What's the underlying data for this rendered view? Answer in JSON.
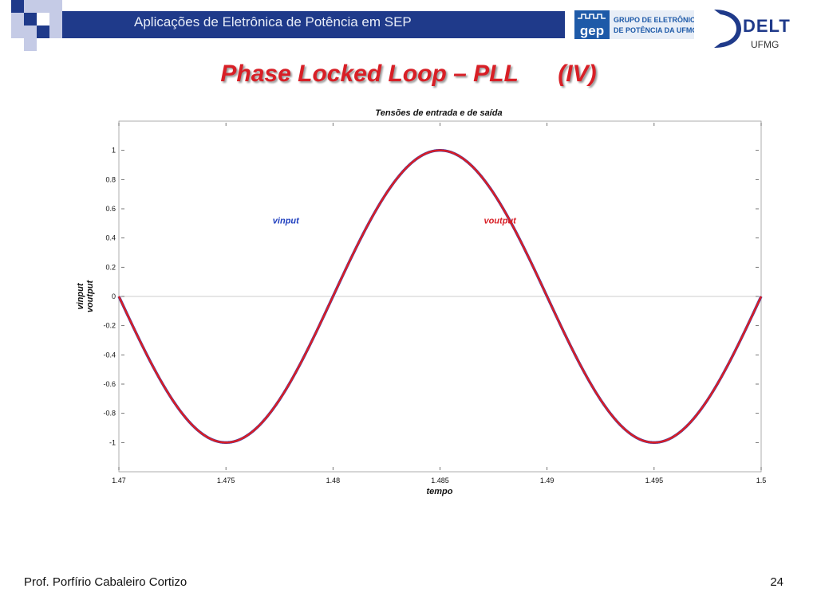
{
  "header": {
    "title": "Aplicações de Eletrônica de Potência em SEP",
    "gep_logo": {
      "mark": "gep",
      "line1": "GRUPO DE ELETRÔNICA",
      "line2": "DE POTÊNCIA DA UFMG"
    },
    "delt_logo": {
      "mark": "DELT",
      "sub": "UFMG"
    }
  },
  "slide": {
    "title": "Phase Locked Loop – PLL      (IV)"
  },
  "footer": {
    "author": "Prof. Porfírio Cabaleiro Cortizo",
    "page_number": "24"
  },
  "colors": {
    "header_band": "#1f3a8a",
    "title_red": "#d81f26",
    "vinput": "#1f3fbf",
    "voutput": "#d81f26"
  },
  "chart_data": {
    "type": "line",
    "title": "Tensões de entrada e de saída",
    "xlabel": "tempo",
    "ylabel_lines": [
      "vinput",
      "voutput"
    ],
    "xlim": [
      1.47,
      1.5
    ],
    "ylim": [
      -1.2,
      1.2
    ],
    "xticks": [
      "1.47",
      "1.475",
      "1.48",
      "1.485",
      "1.49",
      "1.495",
      "1.5"
    ],
    "yticks": [
      "1",
      "0.8",
      "0.6",
      "0.4",
      "0.2",
      "0",
      "-0.2",
      "-0.4",
      "-0.6",
      "-0.8",
      "-1"
    ],
    "grid": false,
    "zero_line": true,
    "series": [
      {
        "name": "vinput",
        "color": "#1f3fbf",
        "frequency_hz": 50,
        "amplitude": 1,
        "phase_deg": 0
      },
      {
        "name": "voutput",
        "color": "#d81f26",
        "frequency_hz": 50,
        "amplitude": 1,
        "phase_deg": 0
      }
    ],
    "annotations": [
      {
        "text": "vinput",
        "x": 1.4778,
        "y": 0.5
      },
      {
        "text": "voutput",
        "x": 1.4878,
        "y": 0.5
      }
    ]
  }
}
